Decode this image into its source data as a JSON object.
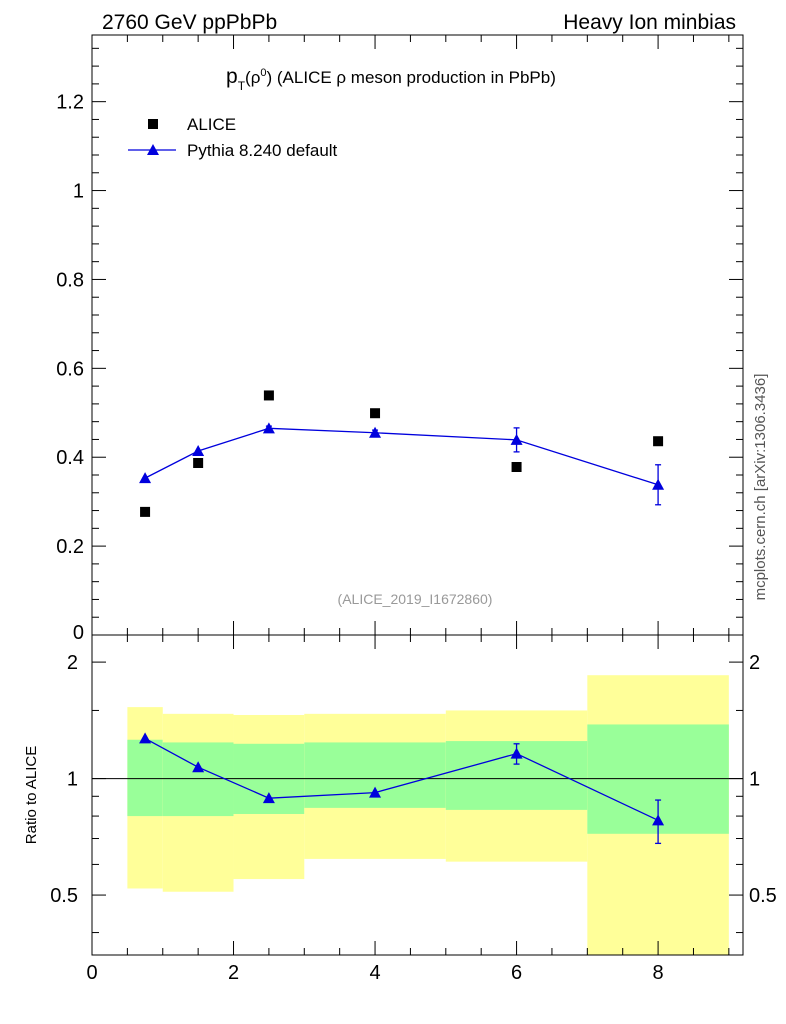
{
  "header": {
    "left": "2760 GeV ppPbPb",
    "right": "Heavy Ion minbias"
  },
  "side_label": "mcplots.cern.ch [arXiv:1306.3436]",
  "analysis_id": "(ALICE_2019_I1672860)",
  "colors": {
    "data": "#000000",
    "mc": "#0000dd",
    "band_inner": "#99ff99",
    "band_outer": "#ffff99"
  },
  "chart_data": [
    {
      "type": "scatter",
      "title_parts": {
        "p": "p",
        "T": "T",
        "open": "(ρ",
        "sup": "0",
        "close": ")",
        "rest": " (ALICE ρ meson production in PbPb)"
      },
      "xlabel": "",
      "ylabel": "",
      "xlim": [
        0,
        9.2
      ],
      "ylim": [
        0,
        1.35
      ],
      "yticks": [
        0.2,
        0.4,
        0.6,
        0.8,
        1,
        1.2
      ],
      "ytick_labels": [
        "0.2",
        "0.4",
        "0.6",
        "0.8",
        "1",
        "1.2"
      ],
      "clipped_zero_label": "0",
      "legend_position": "top-left",
      "series": [
        {
          "name": "ALICE",
          "marker": "square",
          "x": [
            0.75,
            1.5,
            2.5,
            4.0,
            6.0,
            8.0
          ],
          "y": [
            0.277,
            0.387,
            0.539,
            0.499,
            0.378,
            0.436
          ]
        },
        {
          "name": "Pythia 8.240 default",
          "marker": "triangle",
          "x": [
            0.75,
            1.5,
            2.5,
            4.0,
            6.0,
            8.0
          ],
          "y": [
            0.353,
            0.414,
            0.465,
            0.455,
            0.439,
            0.338
          ],
          "yerr": [
            0.003,
            0.004,
            0.005,
            0.006,
            0.027,
            0.045
          ]
        }
      ]
    },
    {
      "type": "line",
      "ylabel": "Ratio to ALICE",
      "xlim": [
        0,
        9.2
      ],
      "ylim": [
        0.35,
        2.35
      ],
      "xticks": [
        0,
        2,
        4,
        6,
        8
      ],
      "xtick_labels": [
        "0",
        "2",
        "4",
        "6",
        "8"
      ],
      "yticks": [
        0.5,
        1,
        2
      ],
      "ytick_labels": [
        "0.5",
        "1",
        "2"
      ],
      "reference_line": 1,
      "bands": [
        {
          "xlo": 0.5,
          "xhi": 1.0,
          "inner": [
            0.8,
            1.26
          ],
          "outer": [
            0.52,
            1.53
          ]
        },
        {
          "xlo": 1.0,
          "xhi": 2.0,
          "inner": [
            0.8,
            1.24
          ],
          "outer": [
            0.51,
            1.47
          ]
        },
        {
          "xlo": 2.0,
          "xhi": 3.0,
          "inner": [
            0.81,
            1.23
          ],
          "outer": [
            0.55,
            1.46
          ]
        },
        {
          "xlo": 3.0,
          "xhi": 5.0,
          "inner": [
            0.84,
            1.24
          ],
          "outer": [
            0.62,
            1.47
          ]
        },
        {
          "xlo": 5.0,
          "xhi": 7.0,
          "inner": [
            0.83,
            1.25
          ],
          "outer": [
            0.61,
            1.5
          ]
        },
        {
          "xlo": 7.0,
          "xhi": 9.0,
          "inner": [
            0.72,
            1.38
          ],
          "outer": [
            0.35,
            1.85
          ]
        }
      ],
      "series": [
        {
          "name": "Pythia 8.240 default",
          "x": [
            0.75,
            1.5,
            2.5,
            4.0,
            6.0,
            8.0
          ],
          "y": [
            1.27,
            1.07,
            0.89,
            0.92,
            1.16,
            0.78
          ],
          "yerr": [
            0.01,
            0.01,
            0.01,
            0.01,
            0.07,
            0.1
          ]
        }
      ]
    }
  ]
}
